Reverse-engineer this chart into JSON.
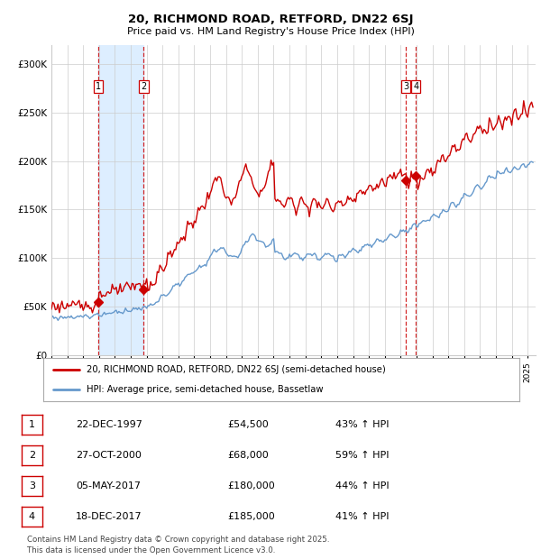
{
  "title": "20, RICHMOND ROAD, RETFORD, DN22 6SJ",
  "subtitle": "Price paid vs. HM Land Registry's House Price Index (HPI)",
  "legend_line1": "20, RICHMOND ROAD, RETFORD, DN22 6SJ (semi-detached house)",
  "legend_line2": "HPI: Average price, semi-detached house, Bassetlaw",
  "footer": "Contains HM Land Registry data © Crown copyright and database right 2025.\nThis data is licensed under the Open Government Licence v3.0.",
  "transactions": [
    {
      "num": 1,
      "date": "22-DEC-1997",
      "price": 54500,
      "hpi_pct": "43% ↑ HPI",
      "date_decimal": 1997.98
    },
    {
      "num": 2,
      "date": "27-OCT-2000",
      "price": 68000,
      "hpi_pct": "59% ↑ HPI",
      "date_decimal": 2000.82
    },
    {
      "num": 3,
      "date": "05-MAY-2017",
      "price": 180000,
      "hpi_pct": "44% ↑ HPI",
      "date_decimal": 2017.34
    },
    {
      "num": 4,
      "date": "18-DEC-2017",
      "price": 185000,
      "hpi_pct": "41% ↑ HPI",
      "date_decimal": 2017.96
    }
  ],
  "red_color": "#cc0000",
  "blue_color": "#6699cc",
  "shaded_region": [
    1997.98,
    2000.82
  ],
  "highlight_color": "#ddeeff",
  "grid_color": "#cccccc",
  "bg_color": "#ffffff",
  "xmin": 1995.0,
  "xmax": 2025.5,
  "ymin": 0,
  "ymax": 320000
}
